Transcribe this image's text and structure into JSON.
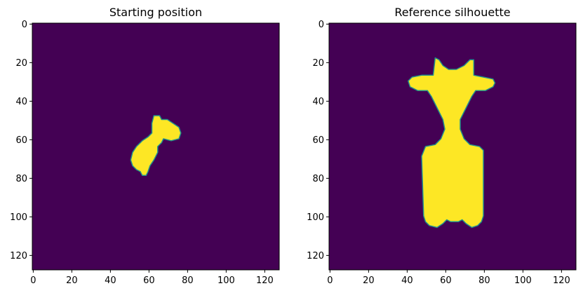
{
  "chart_data": [
    {
      "type": "heatmap",
      "title": "Starting position",
      "xlabel": "",
      "ylabel": "",
      "xlim": [
        0,
        128
      ],
      "ylim": [
        128,
        0
      ],
      "x_ticks": [
        0,
        20,
        40,
        60,
        80,
        100,
        120
      ],
      "y_ticks": [
        0,
        20,
        40,
        60,
        80,
        100,
        120
      ],
      "colors": {
        "background": "#440154",
        "foreground": "#fde725",
        "edge": "#21918c"
      },
      "silhouette_polygons": [
        [
          [
            63,
            48
          ],
          [
            66,
            48
          ],
          [
            67,
            50
          ],
          [
            70,
            50
          ],
          [
            73,
            52
          ],
          [
            76,
            54
          ],
          [
            77,
            57
          ],
          [
            76,
            60
          ],
          [
            72,
            61
          ],
          [
            68,
            60
          ],
          [
            67,
            62
          ],
          [
            65,
            64
          ],
          [
            65,
            67
          ],
          [
            63,
            71
          ],
          [
            61,
            74
          ],
          [
            60,
            77
          ],
          [
            59,
            79
          ],
          [
            57,
            79
          ],
          [
            56,
            77
          ],
          [
            54,
            76
          ],
          [
            52,
            74
          ],
          [
            51,
            71
          ],
          [
            52,
            67
          ],
          [
            54,
            64
          ],
          [
            57,
            61
          ],
          [
            60,
            59
          ],
          [
            62,
            57
          ],
          [
            62,
            52
          ]
        ]
      ]
    },
    {
      "type": "heatmap",
      "title": "Reference silhouette",
      "xlabel": "",
      "ylabel": "",
      "xlim": [
        0,
        128
      ],
      "ylim": [
        128,
        0
      ],
      "x_ticks": [
        0,
        20,
        40,
        60,
        80,
        100,
        120
      ],
      "y_ticks": [
        0,
        20,
        40,
        60,
        80,
        100,
        120
      ],
      "colors": {
        "background": "#440154",
        "foreground": "#fde725",
        "edge": "#21918c"
      },
      "silhouette_polygons": [
        [
          [
            55,
            18
          ],
          [
            57,
            19
          ],
          [
            59,
            22
          ],
          [
            62,
            24
          ],
          [
            66,
            24
          ],
          [
            70,
            22
          ],
          [
            73,
            19
          ],
          [
            75,
            19
          ],
          [
            75,
            27
          ],
          [
            80,
            28
          ],
          [
            85,
            29
          ],
          [
            86,
            31
          ],
          [
            85,
            33
          ],
          [
            81,
            35
          ],
          [
            76,
            35
          ],
          [
            74,
            38
          ],
          [
            72,
            42
          ],
          [
            70,
            46
          ],
          [
            68,
            50
          ],
          [
            68,
            55
          ],
          [
            70,
            60
          ],
          [
            73,
            63
          ],
          [
            78,
            64
          ],
          [
            80,
            66
          ],
          [
            80,
            100
          ],
          [
            79,
            103
          ],
          [
            77,
            105
          ],
          [
            74,
            106
          ],
          [
            71,
            104
          ],
          [
            69,
            102
          ],
          [
            67,
            103
          ],
          [
            63,
            103
          ],
          [
            61,
            102
          ],
          [
            59,
            104
          ],
          [
            56,
            106
          ],
          [
            52,
            105
          ],
          [
            50,
            103
          ],
          [
            49,
            100
          ],
          [
            48,
            69
          ],
          [
            50,
            64
          ],
          [
            55,
            63
          ],
          [
            58,
            60
          ],
          [
            60,
            55
          ],
          [
            59,
            50
          ],
          [
            57,
            46
          ],
          [
            55,
            42
          ],
          [
            53,
            38
          ],
          [
            51,
            35
          ],
          [
            46,
            35
          ],
          [
            42,
            33
          ],
          [
            41,
            30
          ],
          [
            43,
            28
          ],
          [
            48,
            27
          ],
          [
            54,
            27
          ]
        ]
      ]
    }
  ]
}
